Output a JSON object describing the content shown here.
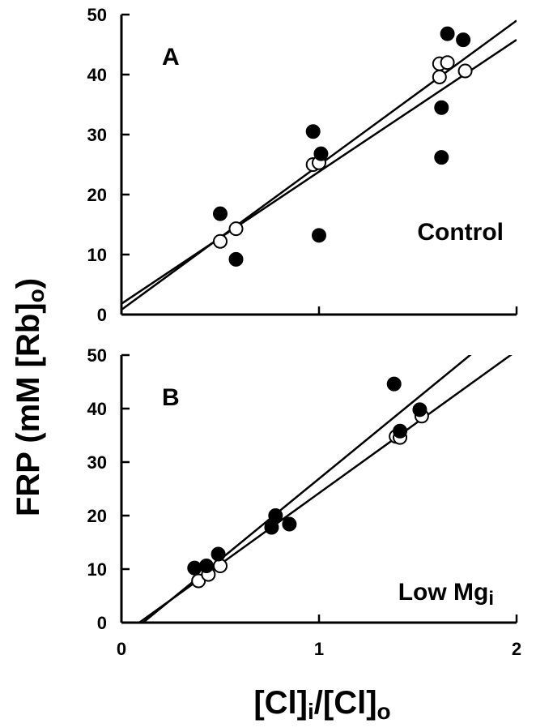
{
  "chart_data": [
    {
      "type": "scatter",
      "panel_label": "A",
      "annotation": "Control",
      "ylabel": "FRP (mM [Rb]o)",
      "xlim": [
        0,
        2
      ],
      "ylim": [
        0,
        50
      ],
      "xticks": [
        0,
        1,
        2
      ],
      "yticks": [
        0,
        10,
        20,
        30,
        40,
        50
      ],
      "series": [
        {
          "marker": "filled-circle",
          "points": [
            [
              0.5,
              16.8
            ],
            [
              0.58,
              9.2
            ],
            [
              0.97,
              30.5
            ],
            [
              1.01,
              26.8
            ],
            [
              1.0,
              13.2
            ],
            [
              1.62,
              34.5
            ],
            [
              1.62,
              26.2
            ],
            [
              1.65,
              46.8
            ],
            [
              1.73,
              45.8
            ]
          ]
        },
        {
          "marker": "open-circle",
          "points": [
            [
              0.5,
              12.2
            ],
            [
              0.58,
              14.3
            ],
            [
              0.97,
              25.0
            ],
            [
              1.0,
              25.3
            ],
            [
              1.61,
              39.6
            ],
            [
              1.61,
              41.8
            ],
            [
              1.65,
              42.0
            ],
            [
              1.74,
              40.6
            ]
          ]
        }
      ],
      "fit_lines": [
        {
          "intercept": 0.8,
          "slope": 24.1
        },
        {
          "intercept": 1.8,
          "slope": 22.0
        }
      ]
    },
    {
      "type": "scatter",
      "panel_label": "B",
      "annotation_main": "Low Mg",
      "annotation_sub": "i",
      "xlim": [
        0,
        2
      ],
      "ylim": [
        0,
        50
      ],
      "xticks": [
        0,
        1,
        2
      ],
      "yticks": [
        0,
        10,
        20,
        30,
        40,
        50
      ],
      "xlabel": "[Cl]i/[Cl]o",
      "series": [
        {
          "marker": "filled-circle",
          "points": [
            [
              0.37,
              10.2
            ],
            [
              0.43,
              10.6
            ],
            [
              0.49,
              12.8
            ],
            [
              0.76,
              17.8
            ],
            [
              0.78,
              20.0
            ],
            [
              0.85,
              18.4
            ],
            [
              1.38,
              44.6
            ],
            [
              1.41,
              35.8
            ],
            [
              1.51,
              39.8
            ]
          ]
        },
        {
          "marker": "open-circle",
          "points": [
            [
              0.39,
              7.8
            ],
            [
              0.44,
              9.0
            ],
            [
              0.5,
              10.6
            ],
            [
              1.39,
              34.8
            ],
            [
              1.41,
              34.6
            ],
            [
              1.52,
              38.6
            ]
          ]
        }
      ],
      "fit_lines": [
        {
          "intercept": -3.3,
          "slope": 30.2
        },
        {
          "intercept": -2.4,
          "slope": 26.6
        }
      ]
    }
  ]
}
